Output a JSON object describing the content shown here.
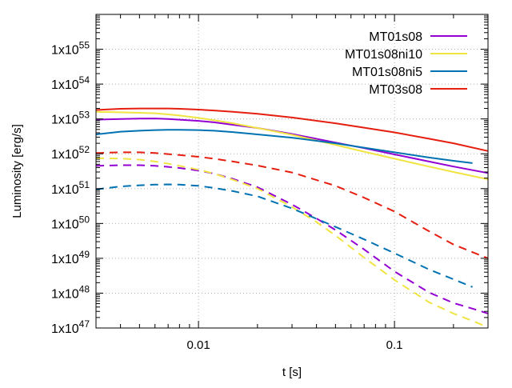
{
  "chart_data": {
    "type": "line",
    "xlabel": "t [s]",
    "ylabel": "Luminosity [erg/s]",
    "xscale": "log",
    "yscale": "log",
    "xlim": [
      0.003,
      0.3
    ],
    "ylim": [
      1e+47,
      1e+56
    ],
    "grid": true,
    "legend_position": "top-right",
    "x_ticks": [
      {
        "value": 0.01,
        "label": "0.01"
      },
      {
        "value": 0.1,
        "label": "0.1"
      }
    ],
    "y_ticks": [
      {
        "exp": 47,
        "base": "1x10",
        "sup": "47"
      },
      {
        "exp": 48,
        "base": "1x10",
        "sup": "48"
      },
      {
        "exp": 49,
        "base": "1x10",
        "sup": "49"
      },
      {
        "exp": 50,
        "base": "1x10",
        "sup": "50"
      },
      {
        "exp": 51,
        "base": "1x10",
        "sup": "51"
      },
      {
        "exp": 52,
        "base": "1x10",
        "sup": "52"
      },
      {
        "exp": 53,
        "base": "1x10",
        "sup": "53"
      },
      {
        "exp": 54,
        "base": "1x10",
        "sup": "54"
      },
      {
        "exp": 55,
        "base": "1x10",
        "sup": "55"
      }
    ],
    "series": [
      {
        "name": "MT01s08",
        "color": "#9400d3",
        "dash": "solid",
        "x": [
          0.003,
          0.004,
          0.005,
          0.006,
          0.007,
          0.008,
          0.01,
          0.012,
          0.015,
          0.02,
          0.03,
          0.05,
          0.07,
          0.1,
          0.15,
          0.2,
          0.3
        ],
        "y": [
          9.5e+52,
          1e+53,
          1.02e+53,
          1.03e+53,
          1e+53,
          9.5e+52,
          8.8e+52,
          8e+52,
          6.8e+52,
          5.5e+52,
          3.7e+52,
          2.1e+52,
          1.45e+52,
          9.6e+51,
          6e+51,
          4.3e+51,
          2.8e+51
        ]
      },
      {
        "name": "MT01s08ni10",
        "color": "#f0e442",
        "dash": "solid",
        "x": [
          0.003,
          0.004,
          0.005,
          0.006,
          0.007,
          0.008,
          0.01,
          0.012,
          0.015,
          0.02,
          0.03,
          0.05,
          0.07,
          0.1,
          0.15,
          0.2,
          0.3
        ],
        "y": [
          1.6e+53,
          1.55e+53,
          1.5e+53,
          1.45e+53,
          1.35e+53,
          1.25e+53,
          1.07e+53,
          9.2e+52,
          7.5e+52,
          5.5e+52,
          3.5e+52,
          1.8e+52,
          1.15e+52,
          7.2e+51,
          4.3e+51,
          3e+51,
          1.85e+51
        ]
      },
      {
        "name": "MT01s08ni5",
        "color": "#0072b2",
        "dash": "solid",
        "x": [
          0.003,
          0.004,
          0.005,
          0.006,
          0.007,
          0.008,
          0.01,
          0.012,
          0.015,
          0.02,
          0.03,
          0.05,
          0.07,
          0.1,
          0.15,
          0.2,
          0.25
        ],
        "y": [
          3.6e+52,
          4.3e+52,
          4.6e+52,
          4.8e+52,
          4.9e+52,
          4.9e+52,
          4.8e+52,
          4.6e+52,
          4.2e+52,
          3.6e+52,
          2.9e+52,
          2e+52,
          1.5e+52,
          1.1e+52,
          7.8e+51,
          6.3e+51,
          5.4e+51
        ]
      },
      {
        "name": "MT03s08",
        "color": "#e51e10",
        "dash": "solid",
        "x": [
          0.003,
          0.004,
          0.005,
          0.006,
          0.007,
          0.008,
          0.01,
          0.012,
          0.015,
          0.02,
          0.03,
          0.05,
          0.07,
          0.1,
          0.15,
          0.2,
          0.3
        ],
        "y": [
          1.8e+53,
          1.95e+53,
          2e+53,
          2e+53,
          2e+53,
          1.95e+53,
          1.85e+53,
          1.75e+53,
          1.6e+53,
          1.4e+53,
          1.1e+53,
          7.5e+52,
          5.6e+52,
          4.1e+52,
          2.7e+52,
          2e+52,
          1.2e+52
        ]
      },
      {
        "name": "",
        "color": "#9400d3",
        "dash": "dashed",
        "x": [
          0.003,
          0.004,
          0.005,
          0.006,
          0.007,
          0.008,
          0.01,
          0.012,
          0.015,
          0.02,
          0.03,
          0.04,
          0.05,
          0.07,
          0.1,
          0.15,
          0.2,
          0.25,
          0.3
        ],
        "y": [
          4.5e+51,
          4.7e+51,
          4.7e+51,
          4.5e+51,
          4.2e+51,
          3.9e+51,
          3.3e+51,
          2.7e+51,
          1.9e+51,
          1.1e+51,
          3.5e+50,
          1.4e+50,
          6.5e+49,
          1.8e+49,
          4.2e+48,
          1.05e+48,
          5.2e+47,
          3.6e+47,
          2.6e+47
        ]
      },
      {
        "name": "",
        "color": "#f0e442",
        "dash": "dashed",
        "x": [
          0.003,
          0.004,
          0.005,
          0.006,
          0.007,
          0.008,
          0.01,
          0.012,
          0.015,
          0.02,
          0.03,
          0.04,
          0.05,
          0.07,
          0.1,
          0.15,
          0.2,
          0.25,
          0.3
        ],
        "y": [
          7.5e+51,
          7.3e+51,
          6.8e+51,
          6e+51,
          5.2e+51,
          4.5e+51,
          3.5e+51,
          2.7e+51,
          1.8e+51,
          1e+51,
          3e+50,
          1.1e+50,
          4.5e+49,
          1.05e+49,
          2.4e+48,
          5.5e+47,
          2.6e+47,
          1.6e+47,
          1.05e+47
        ]
      },
      {
        "name": "",
        "color": "#0072b2",
        "dash": "dashed",
        "x": [
          0.003,
          0.004,
          0.005,
          0.006,
          0.007,
          0.008,
          0.01,
          0.012,
          0.015,
          0.02,
          0.03,
          0.05,
          0.07,
          0.1,
          0.15,
          0.2,
          0.25
        ],
        "y": [
          9.5e+50,
          1.15e+51,
          1.25e+51,
          1.3e+51,
          1.32e+51,
          1.3e+51,
          1.2e+51,
          1.05e+51,
          8.5e+50,
          6e+50,
          2.7e+50,
          8e+49,
          3.5e+49,
          1.4e+49,
          4.8e+48,
          2.5e+48,
          1.5e+48
        ]
      },
      {
        "name": "",
        "color": "#e51e10",
        "dash": "dashed",
        "x": [
          0.003,
          0.004,
          0.005,
          0.006,
          0.007,
          0.008,
          0.01,
          0.012,
          0.015,
          0.02,
          0.03,
          0.05,
          0.07,
          0.1,
          0.15,
          0.2,
          0.25,
          0.3
        ],
        "y": [
          1.05e+52,
          1.1e+52,
          1.1e+52,
          1.05e+52,
          9.8e+51,
          9.2e+51,
          8.2e+51,
          7.2e+51,
          6e+51,
          4.6e+51,
          2.9e+51,
          1.2e+51,
          5.5e+50,
          2.2e+50,
          6e+49,
          2.5e+49,
          1.5e+49,
          1e+49
        ]
      }
    ]
  }
}
